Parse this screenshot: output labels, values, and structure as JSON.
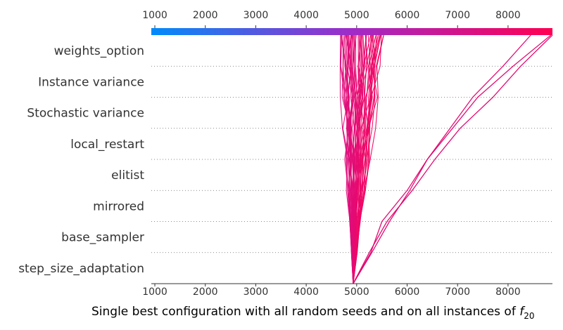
{
  "chart_data": {
    "type": "line",
    "xlabel_main": "Single best configuration with all random seeds and on all instances of ",
    "xlabel_symbol": "f",
    "xlabel_subscript": "20",
    "xlim": [
      930,
      8880
    ],
    "xticks": [
      1000,
      2000,
      3000,
      4000,
      5000,
      6000,
      7000,
      8000
    ],
    "xtick_labels": [
      "1000",
      "2000",
      "3000",
      "4000",
      "5000",
      "6000",
      "7000",
      "8000"
    ],
    "colorbar": {
      "min_color": "#008bfb",
      "max_color": "#ff0052"
    },
    "base_value": 4930,
    "features": [
      "weights_option",
      "Instance variance",
      "Stochastic variance",
      "local_restart",
      "elitist",
      "mirrored",
      "base_sampler",
      "step_size_adaptation"
    ],
    "grid": "dotted horizontal separators"
  }
}
